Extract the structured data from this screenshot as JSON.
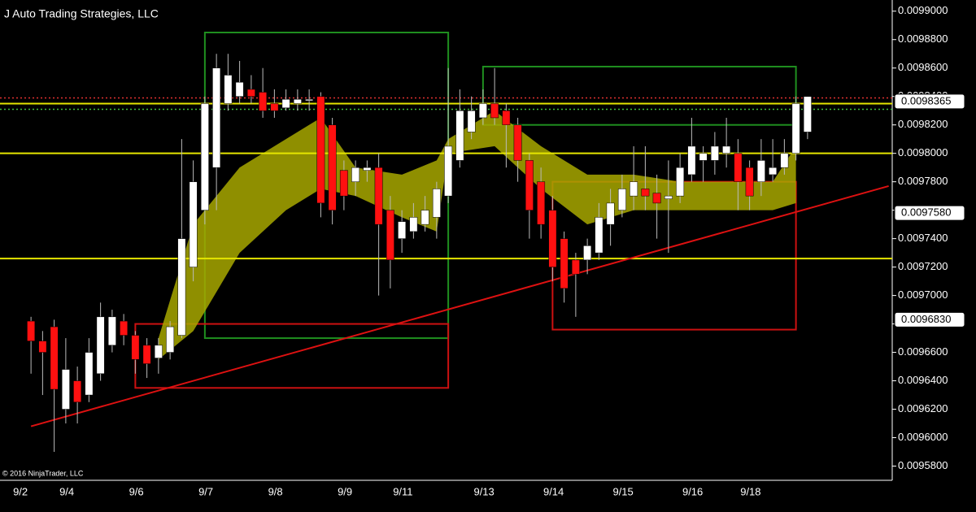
{
  "chart_data": {
    "type": "candlestick",
    "title": "J Auto Trading Strategies, LLC",
    "copyright": "© 2016 NinjaTrader, LLC",
    "categories": [
      "9/2",
      null,
      null,
      null,
      "9/4",
      null,
      null,
      null,
      null,
      null,
      "9/6",
      null,
      null,
      null,
      null,
      null,
      "9/7",
      null,
      null,
      null,
      null,
      null,
      "9/8",
      null,
      null,
      null,
      null,
      null,
      "9/9",
      null,
      null,
      null,
      null,
      "9/11",
      null,
      null,
      null,
      null,
      null,
      null,
      "9/13",
      null,
      null,
      null,
      null,
      null,
      "9/14",
      null,
      null,
      null,
      null,
      null,
      "9/15",
      null,
      null,
      null,
      null,
      null,
      "9/16",
      null,
      null,
      null,
      null,
      "9/18",
      null,
      null,
      null,
      null
    ],
    "open": [
      0.009682,
      0.009668,
      0.009678,
      0.00962,
      0.00964,
      0.00963,
      0.009645,
      0.009665,
      0.009682,
      0.009672,
      0.009665,
      0.009656,
      0.00966,
      0.009672,
      0.00972,
      0.00976,
      0.00979,
      0.009835,
      0.00984,
      0.009845,
      0.009843,
      0.009835,
      0.009832,
      0.009835,
      0.009837,
      0.00984,
      0.00982,
      0.009788,
      0.00978,
      0.009788,
      0.00979,
      0.00976,
      0.00974,
      0.009745,
      0.00975,
      0.009755,
      0.00977,
      0.009795,
      0.009815,
      0.009825,
      0.009835,
      0.00983,
      0.00982,
      0.009795,
      0.00978,
      0.00976,
      0.00974,
      0.009725,
      0.009725,
      0.00973,
      0.00975,
      0.00976,
      0.00977,
      0.009775,
      0.009772,
      0.009768,
      0.00977,
      0.009785,
      0.009795,
      0.009795,
      0.0098,
      0.0098,
      0.00979,
      0.00978,
      0.009785,
      0.00979,
      0.0098,
      0.009815
    ],
    "high": [
      0.009685,
      0.009675,
      0.009683,
      0.00967,
      0.00965,
      0.00967,
      0.009695,
      0.00969,
      0.009687,
      0.009675,
      0.00967,
      0.00967,
      0.009682,
      0.00981,
      0.009795,
      0.00984,
      0.00987,
      0.00987,
      0.009865,
      0.009855,
      0.00986,
      0.009845,
      0.009845,
      0.009845,
      0.009845,
      0.009843,
      0.009825,
      0.009795,
      0.009795,
      0.009795,
      0.0098,
      0.00977,
      0.00976,
      0.009765,
      0.00977,
      0.00978,
      0.00986,
      0.009845,
      0.00984,
      0.009845,
      0.00986,
      0.009835,
      0.009825,
      0.0098,
      0.00979,
      0.00977,
      0.009745,
      0.00973,
      0.00974,
      0.009765,
      0.009775,
      0.009785,
      0.009805,
      0.009805,
      0.009785,
      0.009795,
      0.0098,
      0.009825,
      0.009805,
      0.009815,
      0.009825,
      0.00981,
      0.009795,
      0.00981,
      0.00981,
      0.00981,
      0.00984,
      0.00984
    ],
    "low": [
      0.009645,
      0.00963,
      0.00959,
      0.00961,
      0.00961,
      0.009625,
      0.00964,
      0.00966,
      0.009665,
      0.009645,
      0.009642,
      0.009645,
      0.009655,
      0.00967,
      0.00971,
      0.00975,
      0.00976,
      0.00983,
      0.009835,
      0.009835,
      0.009825,
      0.009825,
      0.00983,
      0.00983,
      0.00983,
      0.009755,
      0.00975,
      0.00976,
      0.00977,
      0.00978,
      0.0097,
      0.009705,
      0.00973,
      0.00974,
      0.009745,
      0.00974,
      0.009765,
      0.00979,
      0.00981,
      0.00982,
      0.00982,
      0.00979,
      0.00978,
      0.00974,
      0.00974,
      0.00971,
      0.009695,
      0.009685,
      0.009715,
      0.009725,
      0.009735,
      0.009755,
      0.00976,
      0.00976,
      0.00974,
      0.00973,
      0.009765,
      0.00978,
      0.00978,
      0.009785,
      0.00979,
      0.00976,
      0.00976,
      0.00977,
      0.00978,
      0.009785,
      0.009795,
      0.00981
    ],
    "close": [
      0.009668,
      0.00966,
      0.009634,
      0.009648,
      0.009625,
      0.00966,
      0.009685,
      0.009685,
      0.009672,
      0.009655,
      0.009652,
      0.009665,
      0.009678,
      0.00974,
      0.00978,
      0.009835,
      0.00986,
      0.009855,
      0.00985,
      0.00984,
      0.00983,
      0.00983,
      0.009838,
      0.009838,
      0.009838,
      0.009765,
      0.00976,
      0.00977,
      0.00979,
      0.00979,
      0.00975,
      0.009725,
      0.009752,
      0.009755,
      0.00976,
      0.009775,
      0.009805,
      0.00983,
      0.00983,
      0.009835,
      0.009825,
      0.00982,
      0.009795,
      0.00976,
      0.00975,
      0.00972,
      0.009705,
      0.009715,
      0.009735,
      0.009755,
      0.009765,
      0.009775,
      0.00978,
      0.00977,
      0.009765,
      0.00977,
      0.00979,
      0.009805,
      0.0098,
      0.009805,
      0.009805,
      0.00978,
      0.00977,
      0.009795,
      0.00979,
      0.0098,
      0.009835,
      0.00984
    ],
    "up_color": "#ffffff",
    "down_color": "#ff1010",
    "ylim": [
      0.00957,
      0.009905
    ],
    "yticks": [
      {
        "value": 0.0099,
        "label": "0.0099000"
      },
      {
        "value": 0.00988,
        "label": "0.0098800"
      },
      {
        "value": 0.00986,
        "label": "0.0098600"
      },
      {
        "value": 0.00984,
        "label": "0.0098400"
      },
      {
        "value": 0.00982,
        "label": "0.0098200"
      },
      {
        "value": 0.0098,
        "label": "0.0098000"
      },
      {
        "value": 0.00978,
        "label": "0.0097800"
      },
      {
        "value": 0.00976,
        "label": "0.0097600"
      },
      {
        "value": 0.00974,
        "label": "0.0097400"
      },
      {
        "value": 0.00972,
        "label": "0.0097200"
      },
      {
        "value": 0.0097,
        "label": "0.0097000"
      },
      {
        "value": 0.00968,
        "label": "0.0096800"
      },
      {
        "value": 0.00966,
        "label": "0.0096600"
      },
      {
        "value": 0.00964,
        "label": "0.0096400"
      },
      {
        "value": 0.00962,
        "label": "0.0096200"
      },
      {
        "value": 0.0096,
        "label": "0.0096000"
      },
      {
        "value": 0.00958,
        "label": "0.0095800"
      }
    ],
    "price_labels": [
      {
        "value": 0.0098365,
        "label": "0.0098365"
      },
      {
        "value": 0.009758,
        "label": "0.0097580"
      },
      {
        "value": 0.009683,
        "label": "0.0096830"
      }
    ],
    "levels": [
      {
        "value": 0.0098,
        "color": "#e6e600",
        "style": "solid"
      },
      {
        "value": 0.009726,
        "color": "#e6e600",
        "style": "solid"
      },
      {
        "value": 0.009835,
        "color": "#e6e600",
        "style": "solid"
      },
      {
        "value": 0.009839,
        "color": "#e03030",
        "style": "dotted"
      },
      {
        "value": 0.009831,
        "color": "#40c040",
        "style": "dotted"
      }
    ],
    "boxes": [
      {
        "x": [
          15,
          36
        ],
        "top": 0.009885,
        "bottom": 0.00967,
        "color": "#1f8f1f"
      },
      {
        "x": [
          9,
          36
        ],
        "top": 0.00968,
        "bottom": 0.009635,
        "color": "#cc1111"
      },
      {
        "x": [
          39,
          66
        ],
        "top": 0.009861,
        "bottom": 0.00982,
        "color": "#1f8f1f"
      },
      {
        "x": [
          45,
          66
        ],
        "top": 0.00978,
        "bottom": 0.009676,
        "color": "#cc1111"
      }
    ],
    "band": {
      "color": "#a8a800",
      "x": [
        11,
        14,
        18,
        22,
        25,
        28,
        32,
        35,
        36,
        40,
        44,
        48,
        52,
        56,
        60,
        64,
        66
      ],
      "upper": [
        0.00967,
        0.00975,
        0.00979,
        0.00981,
        0.009825,
        0.00979,
        0.009785,
        0.009795,
        0.00981,
        0.00983,
        0.009805,
        0.009785,
        0.009785,
        0.00978,
        0.00978,
        0.00978,
        0.009805
      ],
      "lower": [
        0.009655,
        0.009675,
        0.00973,
        0.00976,
        0.009775,
        0.00977,
        0.009755,
        0.009745,
        0.0098,
        0.009805,
        0.009775,
        0.00975,
        0.00976,
        0.00976,
        0.00976,
        0.00976,
        0.009765
      ]
    },
    "trend_line": {
      "color": "#dd1111",
      "x": [
        0,
        74
      ],
      "values": [
        0.009608,
        0.009777
      ]
    }
  }
}
